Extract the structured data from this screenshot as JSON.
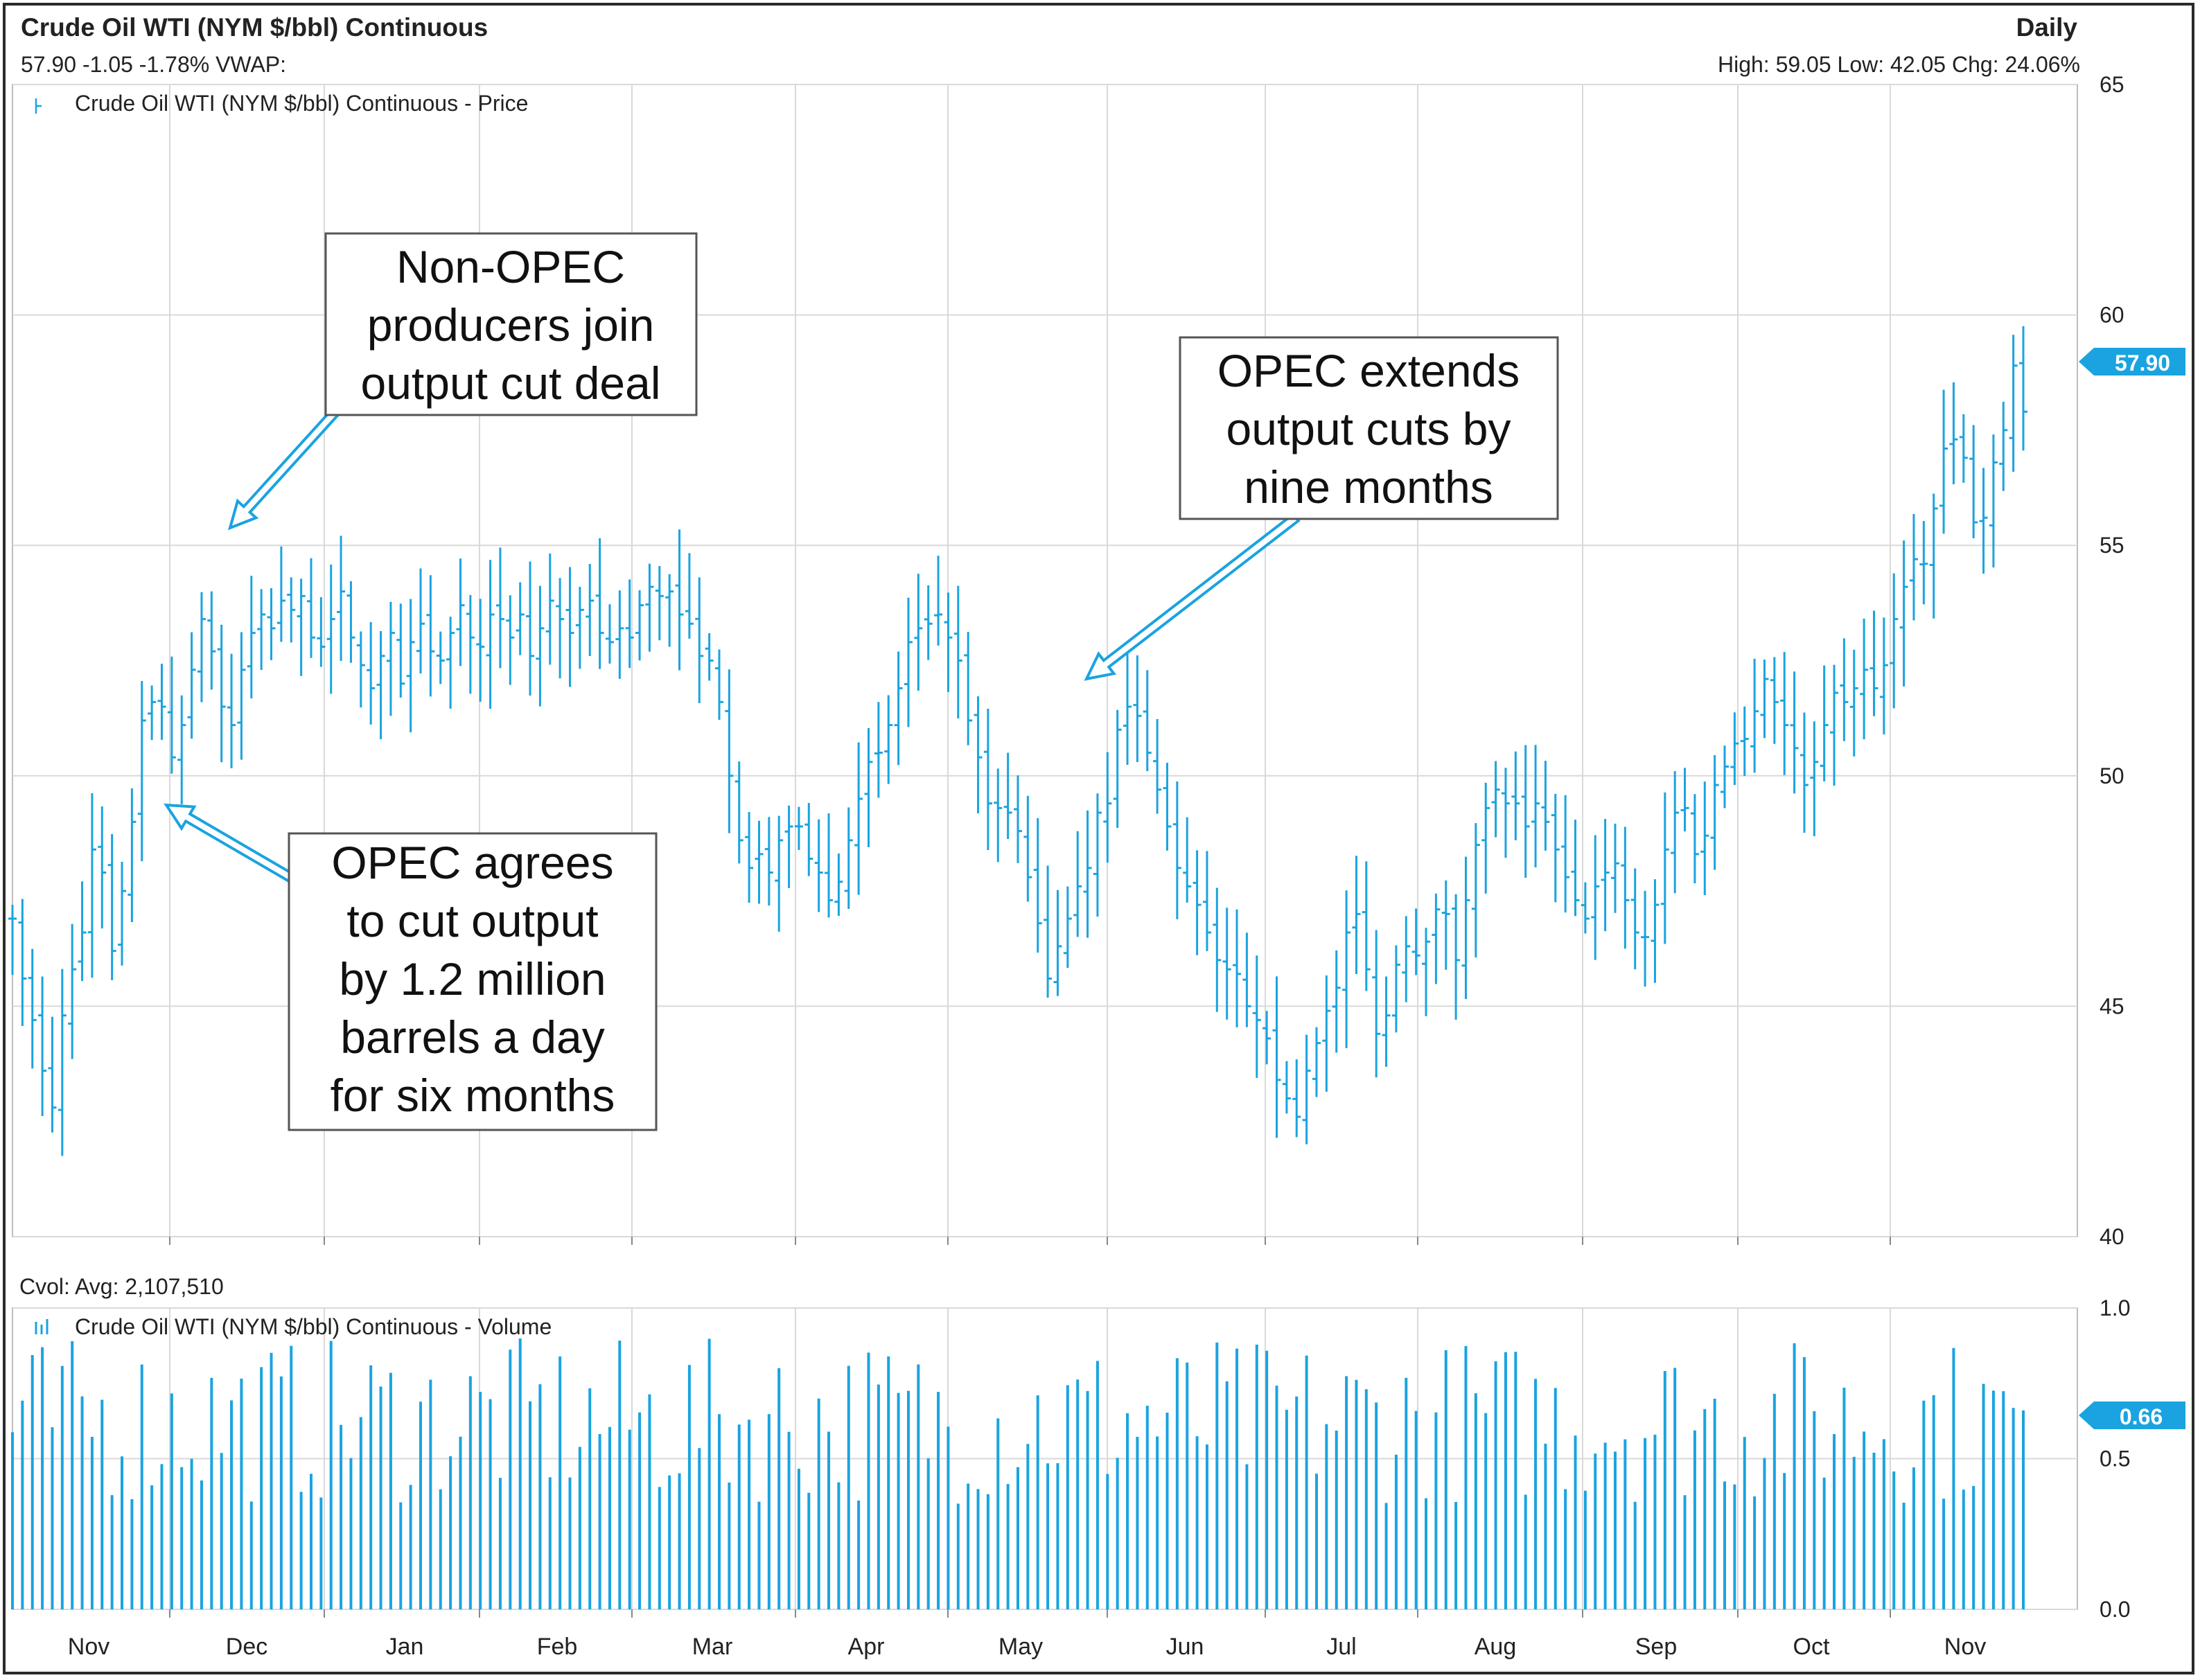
{
  "header": {
    "title": "Crude Oil WTI (NYM $/bbl) Continuous",
    "quote": "57.90 -1.05 -1.78% VWAP:",
    "interval": "Daily",
    "stats": "High: 59.05 Low: 42.05 Chg: 24.06%"
  },
  "colors": {
    "series": "#1aa3e0",
    "grid": "#d9d9d9",
    "annotation_border": "#555555",
    "text": "#222222"
  },
  "chart_data": {
    "type": "ohlc",
    "months": [
      "Nov",
      "Dec",
      "Jan",
      "Feb",
      "Mar",
      "Apr",
      "May",
      "Jun",
      "Jul",
      "Aug",
      "Sep",
      "Oct",
      "Nov"
    ],
    "price_panel": {
      "legend": "Crude Oil WTI (NYM $/bbl) Continuous - Price",
      "ylim": [
        40,
        65
      ],
      "yticks": [
        "65",
        "60",
        "55",
        "50",
        "45",
        "40"
      ],
      "last_value_label": "57.90",
      "last": 57.9,
      "high": 59.05,
      "low": 42.05,
      "close_path": [
        [
          0,
          46.9
        ],
        [
          1,
          45.6
        ],
        [
          2,
          44.7
        ],
        [
          3,
          43.6
        ],
        [
          4,
          42.8
        ],
        [
          5,
          44.8
        ],
        [
          6,
          45.8
        ],
        [
          7,
          46.6
        ],
        [
          8,
          48.4
        ],
        [
          9,
          47.9
        ],
        [
          10,
          46.2
        ],
        [
          11,
          47.5
        ],
        [
          12,
          49.0
        ],
        [
          13,
          51.2
        ],
        [
          14,
          51.6
        ],
        [
          15,
          51.5
        ],
        [
          16,
          50.4
        ],
        [
          17,
          51.1
        ],
        [
          18,
          52.3
        ],
        [
          19,
          53.4
        ],
        [
          20,
          52.7
        ],
        [
          21,
          51.5
        ],
        [
          22,
          51.1
        ],
        [
          23,
          52.3
        ],
        [
          24,
          53.1
        ],
        [
          25,
          53.5
        ],
        [
          26,
          53.2
        ],
        [
          27,
          53.8
        ],
        [
          28,
          53.6
        ],
        [
          29,
          53.9
        ],
        [
          30,
          53.0
        ],
        [
          31,
          52.8
        ],
        [
          32,
          53.4
        ],
        [
          33,
          54.0
        ],
        [
          34,
          53.0
        ],
        [
          35,
          52.4
        ],
        [
          36,
          51.9
        ],
        [
          37,
          52.6
        ],
        [
          38,
          53.1
        ],
        [
          39,
          52.0
        ],
        [
          40,
          52.9
        ],
        [
          41,
          53.3
        ],
        [
          42,
          52.7
        ],
        [
          43,
          52.5
        ],
        [
          44,
          53.1
        ],
        [
          45,
          53.7
        ],
        [
          46,
          53.0
        ],
        [
          47,
          52.8
        ],
        [
          48,
          53.5
        ],
        [
          49,
          53.4
        ],
        [
          50,
          53.0
        ],
        [
          51,
          53.5
        ],
        [
          52,
          52.6
        ],
        [
          53,
          53.2
        ],
        [
          54,
          53.8
        ],
        [
          55,
          53.4
        ],
        [
          56,
          53.1
        ],
        [
          57,
          53.6
        ],
        [
          58,
          53.8
        ],
        [
          59,
          53.1
        ],
        [
          60,
          52.9
        ],
        [
          61,
          53.2
        ],
        [
          62,
          53.0
        ],
        [
          63,
          53.7
        ],
        [
          64,
          54.1
        ],
        [
          65,
          53.9
        ],
        [
          66,
          54.0
        ],
        [
          67,
          53.5
        ],
        [
          68,
          53.3
        ],
        [
          69,
          52.6
        ],
        [
          70,
          52.5
        ],
        [
          71,
          51.6
        ],
        [
          72,
          50.0
        ],
        [
          73,
          48.6
        ],
        [
          74,
          48.0
        ],
        [
          75,
          48.3
        ],
        [
          76,
          47.9
        ],
        [
          77,
          48.6
        ],
        [
          78,
          48.9
        ],
        [
          79,
          48.9
        ],
        [
          80,
          48.2
        ],
        [
          81,
          47.9
        ],
        [
          82,
          47.3
        ],
        [
          83,
          47.7
        ],
        [
          84,
          48.6
        ],
        [
          85,
          49.5
        ],
        [
          86,
          50.3
        ],
        [
          87,
          50.5
        ],
        [
          88,
          51.1
        ],
        [
          89,
          51.9
        ],
        [
          90,
          52.9
        ],
        [
          91,
          53.2
        ],
        [
          92,
          53.3
        ],
        [
          93,
          53.5
        ],
        [
          94,
          53.0
        ],
        [
          95,
          52.5
        ],
        [
          96,
          51.2
        ],
        [
          97,
          50.4
        ],
        [
          98,
          49.4
        ],
        [
          99,
          49.3
        ],
        [
          100,
          49.2
        ],
        [
          101,
          48.8
        ],
        [
          102,
          47.8
        ],
        [
          103,
          46.8
        ],
        [
          104,
          45.6
        ],
        [
          105,
          46.3
        ],
        [
          106,
          46.9
        ],
        [
          107,
          47.6
        ],
        [
          108,
          48.0
        ],
        [
          109,
          49.2
        ],
        [
          110,
          49.4
        ],
        [
          111,
          51.0
        ],
        [
          112,
          51.5
        ],
        [
          113,
          51.3
        ],
        [
          114,
          50.5
        ],
        [
          115,
          49.7
        ],
        [
          116,
          48.9
        ],
        [
          117,
          48.0
        ],
        [
          118,
          47.6
        ],
        [
          119,
          47.2
        ],
        [
          120,
          46.6
        ],
        [
          121,
          46.0
        ],
        [
          122,
          45.8
        ],
        [
          123,
          45.7
        ],
        [
          124,
          45.0
        ],
        [
          125,
          44.7
        ],
        [
          126,
          44.3
        ],
        [
          127,
          43.4
        ],
        [
          128,
          43.0
        ],
        [
          129,
          42.6
        ],
        [
          130,
          43.6
        ],
        [
          131,
          44.2
        ],
        [
          132,
          44.9
        ],
        [
          133,
          45.4
        ],
        [
          134,
          46.6
        ],
        [
          135,
          47.0
        ],
        [
          136,
          45.8
        ],
        [
          137,
          44.4
        ],
        [
          138,
          44.8
        ],
        [
          139,
          45.9
        ],
        [
          140,
          46.3
        ],
        [
          141,
          46.1
        ],
        [
          142,
          46.4
        ],
        [
          143,
          47.1
        ],
        [
          144,
          47.0
        ],
        [
          145,
          46.0
        ],
        [
          146,
          47.3
        ],
        [
          147,
          48.5
        ],
        [
          148,
          49.3
        ],
        [
          149,
          49.7
        ],
        [
          150,
          49.4
        ],
        [
          151,
          49.4
        ],
        [
          152,
          48.9
        ],
        [
          153,
          49.4
        ],
        [
          154,
          49.0
        ],
        [
          155,
          48.4
        ],
        [
          156,
          47.8
        ],
        [
          157,
          47.3
        ],
        [
          158,
          46.9
        ],
        [
          159,
          47.6
        ],
        [
          160,
          47.9
        ],
        [
          161,
          48.1
        ],
        [
          162,
          47.3
        ],
        [
          163,
          46.6
        ],
        [
          164,
          46.5
        ],
        [
          165,
          47.2
        ],
        [
          166,
          48.4
        ],
        [
          167,
          49.2
        ],
        [
          168,
          49.3
        ],
        [
          169,
          48.3
        ],
        [
          170,
          48.7
        ],
        [
          171,
          49.8
        ],
        [
          172,
          50.2
        ],
        [
          173,
          50.7
        ],
        [
          174,
          50.8
        ],
        [
          175,
          51.4
        ],
        [
          176,
          52.1
        ],
        [
          177,
          51.6
        ],
        [
          178,
          51.1
        ],
        [
          179,
          50.6
        ],
        [
          180,
          49.8
        ],
        [
          181,
          50.3
        ],
        [
          182,
          51.1
        ],
        [
          183,
          51.8
        ],
        [
          184,
          51.6
        ],
        [
          185,
          51.9
        ],
        [
          186,
          52.3
        ],
        [
          187,
          51.9
        ],
        [
          188,
          52.4
        ],
        [
          189,
          53.4
        ],
        [
          190,
          54.1
        ],
        [
          191,
          54.7
        ],
        [
          192,
          54.6
        ],
        [
          193,
          55.8
        ],
        [
          194,
          57.1
        ],
        [
          195,
          57.3
        ],
        [
          196,
          56.9
        ],
        [
          197,
          55.5
        ],
        [
          198,
          55.6
        ],
        [
          199,
          56.8
        ],
        [
          200,
          57.5
        ],
        [
          201,
          58.9
        ],
        [
          202,
          57.9
        ]
      ]
    },
    "volume_panel": {
      "label": "Cvol: Avg: 2,107,510",
      "legend": "Crude Oil WTI (NYM $/bbl) Continuous - Volume",
      "ylim": [
        0.0,
        1.0
      ],
      "yticks": [
        "1.0",
        "0.5",
        "0.0"
      ],
      "last_value_label": "0.66",
      "last": 0.66
    },
    "annotations": [
      "Non-OPEC\nproducers join\noutput cut deal",
      "OPEC extends\noutput cuts by\nnine months",
      "OPEC agrees\nto cut output\nby 1.2 million\nbarrels a day\nfor six months"
    ]
  }
}
